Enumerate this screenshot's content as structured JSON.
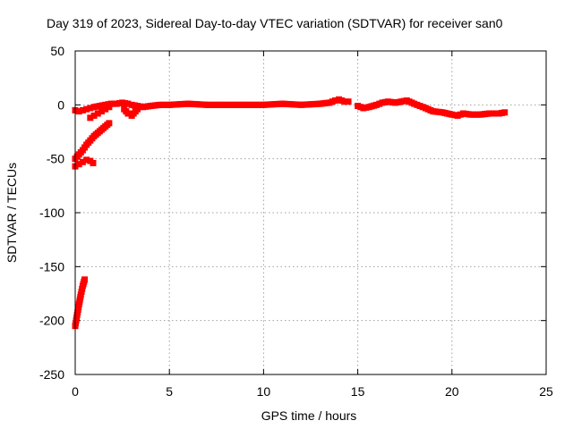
{
  "chart_data": {
    "type": "scatter",
    "title": "Day 319 of 2023, Sidereal Day-to-day VTEC variation (SDTVAR) for receiver san0",
    "xlabel": "GPS time / hours",
    "ylabel": "SDTVAR / TECUs",
    "xlim": [
      0,
      25
    ],
    "ylim": [
      -250,
      50
    ],
    "xticks": [
      0,
      5,
      10,
      15,
      20,
      25
    ],
    "yticks": [
      -250,
      -200,
      -150,
      -100,
      -50,
      0,
      50
    ],
    "xtick_labels": [
      "0",
      "5",
      "10",
      "15",
      "20",
      "25"
    ],
    "ytick_labels": [
      "-250",
      "-200",
      "-150",
      "-100",
      "-50",
      "0",
      "50"
    ],
    "grid": true,
    "marker": "square",
    "color": "#ff0000",
    "series": [
      {
        "name": "main arc",
        "x": [
          0.0,
          0.2,
          0.4,
          0.6,
          0.8,
          1.0,
          1.3,
          1.6,
          1.9,
          2.2,
          2.5,
          2.8,
          3.0,
          3.3,
          3.6,
          4.0,
          4.5,
          5.0,
          6.0,
          7.0,
          8.0,
          9.0,
          10.0,
          11.0,
          12.0,
          13.0,
          13.5,
          13.8,
          14.0,
          14.3,
          14.5
        ],
        "y": [
          -5,
          -6,
          -5,
          -4,
          -3,
          -2,
          -1,
          0,
          1,
          1,
          2,
          1,
          0,
          -1,
          -2,
          -1,
          0,
          0,
          1,
          0,
          0,
          0,
          0,
          1,
          0,
          1,
          2,
          4,
          5,
          3,
          3
        ]
      },
      {
        "name": "dip near 3 h",
        "x": [
          2.6,
          2.8,
          3.0,
          3.2,
          3.4
        ],
        "y": [
          -4,
          -8,
          -10,
          -6,
          -2
        ]
      },
      {
        "name": "late arc",
        "x": [
          15.0,
          15.3,
          15.6,
          16.0,
          16.3,
          16.6,
          17.0,
          17.3,
          17.6,
          18.0,
          18.3,
          18.6,
          19.0,
          19.5,
          20.0,
          20.3,
          20.6,
          21.0,
          21.5,
          22.0,
          22.5,
          22.8
        ],
        "y": [
          -1,
          -3,
          -2,
          0,
          2,
          3,
          2,
          3,
          4,
          1,
          -1,
          -3,
          -6,
          -7,
          -9,
          -10,
          -8,
          -9,
          -9,
          -8,
          -8,
          -7
        ]
      },
      {
        "name": "rising segment 1",
        "x": [
          0.0,
          0.2,
          0.4,
          0.6,
          0.8,
          1.0,
          1.2,
          1.4,
          1.6,
          1.8
        ],
        "y": [
          -50,
          -46,
          -42,
          -37,
          -33,
          -29,
          -26,
          -23,
          -20,
          -17
        ]
      },
      {
        "name": "rising segment 2",
        "x": [
          0.8,
          1.0,
          1.2,
          1.4,
          1.6,
          1.8
        ],
        "y": [
          -12,
          -10,
          -8,
          -6,
          -4,
          -2
        ]
      },
      {
        "name": "low hump",
        "x": [
          0.0,
          0.2,
          0.4,
          0.6,
          0.8,
          0.95
        ],
        "y": [
          -57,
          -55,
          -53,
          -51,
          -52,
          -54
        ]
      },
      {
        "name": "steep segment",
        "x": [
          0.0,
          0.1,
          0.2,
          0.3,
          0.4,
          0.5
        ],
        "y": [
          -205,
          -195,
          -185,
          -176,
          -168,
          -162
        ]
      }
    ]
  }
}
